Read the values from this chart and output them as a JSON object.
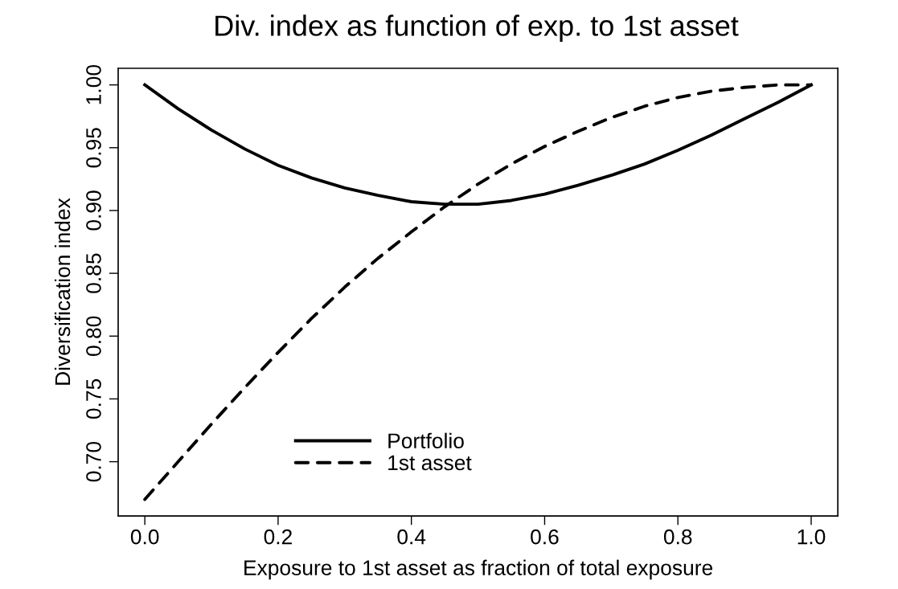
{
  "chart_data": {
    "type": "line",
    "title": "Div. index as function of exp. to 1st asset",
    "xlabel": "Exposure to 1st asset as fraction of total exposure",
    "ylabel": "Diversification index",
    "x": [
      0,
      0.05,
      0.1,
      0.15,
      0.2,
      0.25,
      0.3,
      0.35,
      0.4,
      0.45,
      0.5,
      0.55,
      0.6,
      0.65,
      0.7,
      0.75,
      0.8,
      0.85,
      0.9,
      0.95,
      1.0
    ],
    "series": [
      {
        "name": "Portfolio",
        "color": "#000000",
        "line_style": "solid",
        "values": [
          1.0,
          0.981,
          0.964,
          0.949,
          0.936,
          0.926,
          0.918,
          0.912,
          0.907,
          0.905,
          0.905,
          0.908,
          0.913,
          0.92,
          0.928,
          0.937,
          0.948,
          0.96,
          0.973,
          0.986,
          1.0
        ]
      },
      {
        "name": "1st asset",
        "color": "#000000",
        "line_style": "dashed",
        "values": [
          0.67,
          0.7,
          0.73,
          0.759,
          0.787,
          0.814,
          0.839,
          0.862,
          0.883,
          0.903,
          0.921,
          0.937,
          0.951,
          0.963,
          0.974,
          0.983,
          0.99,
          0.995,
          0.998,
          1.0,
          1.0
        ]
      }
    ],
    "xlim": [
      -0.04,
      1.04
    ],
    "ylim": [
      0.6568,
      1.0132
    ],
    "xticks": [
      {
        "value": 0,
        "label": "0.0"
      },
      0.2,
      0.4,
      0.6,
      0.8,
      {
        "value": 1,
        "label": "1.0"
      }
    ],
    "yticks": [
      {
        "value": 0.7,
        "label": "0.70"
      },
      0.75,
      {
        "value": 0.8,
        "label": "0.80"
      },
      0.85,
      {
        "value": 0.9,
        "label": "0.90"
      },
      0.95,
      {
        "value": 1,
        "label": "1.00"
      }
    ],
    "grid": false,
    "legend": "bottom left"
  }
}
